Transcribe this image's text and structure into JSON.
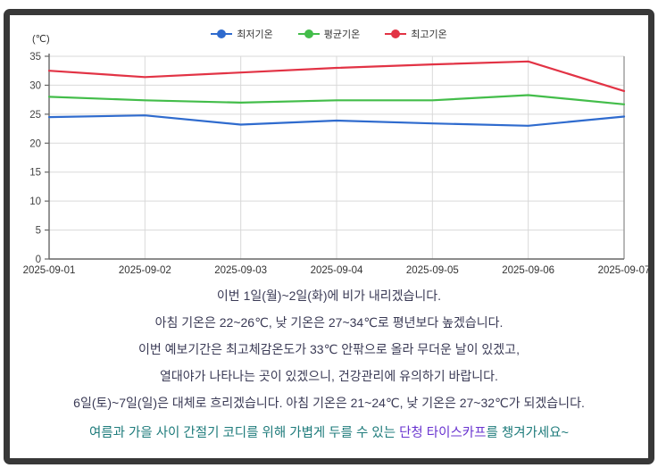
{
  "chart": {
    "unit_label": "(℃)"
  },
  "chart_data": {
    "type": "line",
    "title": "",
    "xlabel": "",
    "ylabel": "(℃)",
    "x": [
      "2025-09-01",
      "2025-09-02",
      "2025-09-03",
      "2025-09-04",
      "2025-09-05",
      "2025-09-06",
      "2025-09-07"
    ],
    "series": [
      {
        "name": "최저기온",
        "color": "#2f6bce",
        "values": [
          24.5,
          24.8,
          23.2,
          23.9,
          23.4,
          23.0,
          24.6
        ]
      },
      {
        "name": "평균기온",
        "color": "#43bd4a",
        "values": [
          28.0,
          27.4,
          27.0,
          27.4,
          27.4,
          28.3,
          26.7
        ]
      },
      {
        "name": "최고기온",
        "color": "#e23345",
        "values": [
          32.5,
          31.4,
          32.2,
          33.0,
          33.6,
          34.1,
          29.0
        ]
      }
    ],
    "ylim": [
      0,
      35
    ],
    "yticks": [
      0,
      5,
      10,
      15,
      20,
      25,
      30,
      35
    ],
    "grid": true,
    "legend_position": "top-center"
  },
  "forecast": {
    "text_color": "#3a3a55",
    "lines": [
      "이번 1일(월)~2일(화)에 비가 내리겠습니다.",
      "아침 기온은 22~26℃, 낮 기온은 27~34℃로 평년보다 높겠습니다.",
      "이번 예보기간은 최고체감온도가 33℃ 안팎으로 올라 무더운 날이 있겠고,",
      "열대야가 나타나는 곳이 있겠으니, 건강관리에 유의하기 바랍니다.",
      "6일(토)~7일(일)은 대체로 흐리겠습니다. 아침 기온은 21~24℃, 낮 기온은 27~32℃가 되겠습니다."
    ]
  },
  "promo": {
    "prefix": "여름과 가을 사이 간절기 코디를 위해 가볍게 두를 수 있는 ",
    "highlight": "단청 타이스카프",
    "suffix": "를 챙겨가세요~",
    "color": "#1e7b7b",
    "highlight_color": "#6a35d0"
  }
}
